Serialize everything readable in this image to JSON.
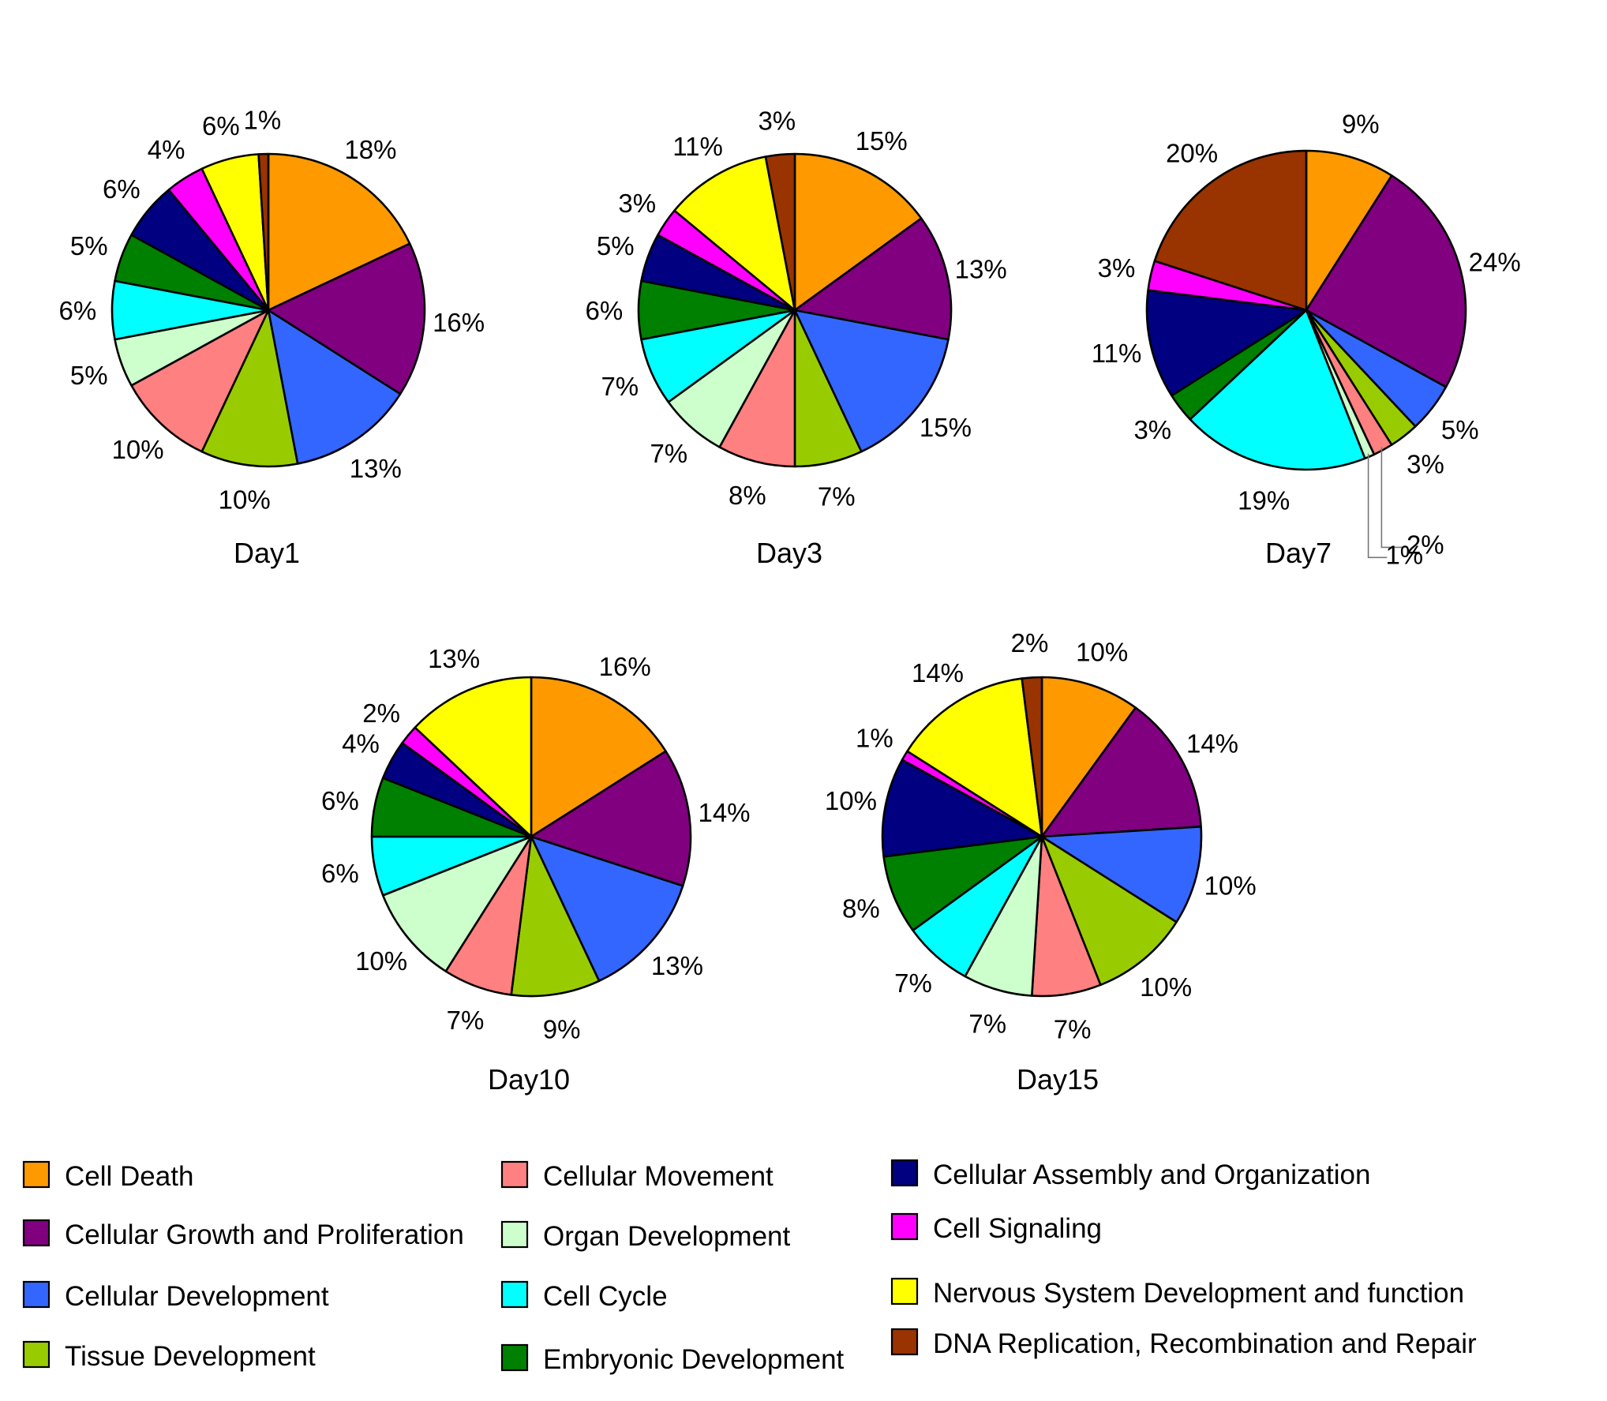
{
  "categories": [
    {
      "name": "Cell Death",
      "color": "#FF9900"
    },
    {
      "name": "Cellular Growth and Proliferation",
      "color": "#800080"
    },
    {
      "name": "Cellular Development",
      "color": "#3366FF"
    },
    {
      "name": "Tissue Development",
      "color": "#99CC00"
    },
    {
      "name": "Cellular Movement",
      "color": "#FF8080"
    },
    {
      "name": "Organ Development",
      "color": "#CCFFCC"
    },
    {
      "name": "Cell Cycle",
      "color": "#00FFFF"
    },
    {
      "name": "Embryonic Development",
      "color": "#008000"
    },
    {
      "name": "Cellular Assembly and Organization",
      "color": "#000080"
    },
    {
      "name": "Cell Signaling",
      "color": "#FF00FF"
    },
    {
      "name": "Nervous System Development and function",
      "color": "#FFFF00"
    },
    {
      "name": "DNA Replication, Recombination and Repair",
      "color": "#993300"
    }
  ],
  "chart_data": [
    {
      "type": "pie",
      "title": "Day1",
      "categories": [
        "Cell Death",
        "Cellular Growth and Proliferation",
        "Cellular Development",
        "Tissue Development",
        "Cellular Movement",
        "Organ Development",
        "Cell Cycle",
        "Embryonic Development",
        "Cellular Assembly and Organization",
        "Cell Signaling",
        "Nervous System Development and function",
        "DNA Replication, Recombination and Repair"
      ],
      "values": [
        18,
        16,
        13,
        10,
        10,
        5,
        6,
        5,
        6,
        4,
        6,
        1
      ],
      "labels": [
        "18%",
        "16%",
        "13%",
        "10%",
        "10%",
        "5%",
        "6%",
        "5%",
        "6%",
        "4%",
        "6%",
        "1%"
      ]
    },
    {
      "type": "pie",
      "title": "Day3",
      "categories": [
        "Cell Death",
        "Cellular Growth and Proliferation",
        "Cellular Development",
        "Tissue Development",
        "Cellular Movement",
        "Organ Development",
        "Cell Cycle",
        "Embryonic Development",
        "Cellular Assembly and Organization",
        "Cell Signaling",
        "Nervous System Development and function",
        "DNA Replication, Recombination and Repair"
      ],
      "values": [
        15,
        13,
        15,
        7,
        8,
        7,
        7,
        6,
        5,
        3,
        11,
        3
      ],
      "labels": [
        "15%",
        "13%",
        "15%",
        "7%",
        "8%",
        "7%",
        "7%",
        "6%",
        "5%",
        "3%",
        "11%",
        "3%"
      ]
    },
    {
      "type": "pie",
      "title": "Day7",
      "categories": [
        "Cell Death",
        "Cellular Growth and Proliferation",
        "Cellular Development",
        "Tissue Development",
        "Cellular Movement",
        "Organ Development",
        "Cell Cycle",
        "Embryonic Development",
        "Cellular Assembly and Organization",
        "Cell Signaling",
        "DNA Replication, Recombination and Repair"
      ],
      "values": [
        9,
        24,
        5,
        3,
        2,
        1,
        19,
        3,
        11,
        3,
        20
      ],
      "labels": [
        "9%",
        "24%",
        "5%",
        "3%",
        "2%",
        "1%",
        "19%",
        "3%",
        "11%",
        "3%",
        "20%"
      ]
    },
    {
      "type": "pie",
      "title": "Day10",
      "categories": [
        "Cell Death",
        "Cellular Growth and Proliferation",
        "Cellular Development",
        "Tissue Development",
        "Cellular Movement",
        "Organ Development",
        "Cell Cycle",
        "Embryonic Development",
        "Cellular Assembly and Organization",
        "Cell Signaling",
        "Nervous System Development and function"
      ],
      "values": [
        16,
        14,
        13,
        9,
        7,
        10,
        6,
        6,
        4,
        2,
        13
      ],
      "labels": [
        "16%",
        "14%",
        "13%",
        "9%",
        "7%",
        "10%",
        "6%",
        "6%",
        "4%",
        "2%",
        "13%"
      ]
    },
    {
      "type": "pie",
      "title": "Day15",
      "categories": [
        "Cell Death",
        "Cellular Growth and Proliferation",
        "Cellular Development",
        "Tissue Development",
        "Cellular Movement",
        "Organ Development",
        "Cell Cycle",
        "Embryonic Development",
        "Cellular Assembly and Organization",
        "Cell Signaling",
        "Nervous System Development and function",
        "DNA Replication, Recombination and Repair"
      ],
      "values": [
        10,
        14,
        10,
        10,
        7,
        7,
        7,
        8,
        10,
        1,
        14,
        2
      ],
      "labels": [
        "10%",
        "14%",
        "10%",
        "10%",
        "7%",
        "7%",
        "7%",
        "8%",
        "10%",
        "1%",
        "14%",
        "2%"
      ]
    }
  ]
}
